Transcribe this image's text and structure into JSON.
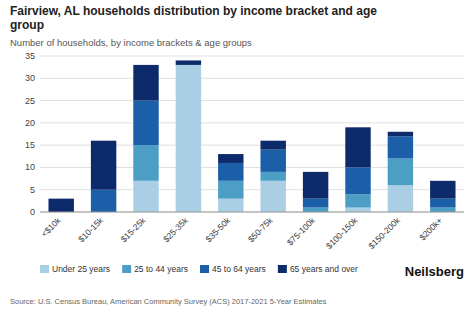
{
  "chart_data": {
    "type": "bar",
    "stacked": true,
    "title": "Fairview, AL households distribution by income bracket and age\ngroup",
    "subtitle": "Number of households, by income brackets & age groups",
    "source": "Source: U.S. Census Bureau, American Community Survey (ACS) 2017-2021 5-Year Estimates",
    "annotations": [
      "Neilsberg"
    ],
    "categories": [
      "<$10k",
      "$10-15k",
      "$15-25k",
      "$25-35k",
      "$35-50k",
      "$50-75k",
      "$75-100k",
      "$100-150k",
      "$150-200k",
      "$200k+"
    ],
    "series": [
      {
        "name": "Under 25 years",
        "color": "#aacfe4",
        "values": [
          0,
          0,
          7,
          33,
          3,
          7,
          0,
          1,
          6,
          0
        ]
      },
      {
        "name": "25 to 44 years",
        "color": "#4d9ec5",
        "values": [
          0,
          0,
          8,
          0,
          4,
          2,
          1,
          3,
          6,
          1
        ]
      },
      {
        "name": "45 to 64 years",
        "color": "#1a5fa8",
        "values": [
          0,
          5,
          10,
          0,
          4,
          5,
          2,
          6,
          5,
          2
        ]
      },
      {
        "name": "65 years and over",
        "color": "#0d2b6b",
        "values": [
          3,
          11,
          8,
          1,
          2,
          2,
          6,
          9,
          1,
          4
        ]
      }
    ],
    "ylim": [
      0,
      35
    ],
    "yticks": [
      0,
      5,
      10,
      15,
      20,
      25,
      30,
      35
    ],
    "grid": true,
    "legend": "bottom"
  }
}
